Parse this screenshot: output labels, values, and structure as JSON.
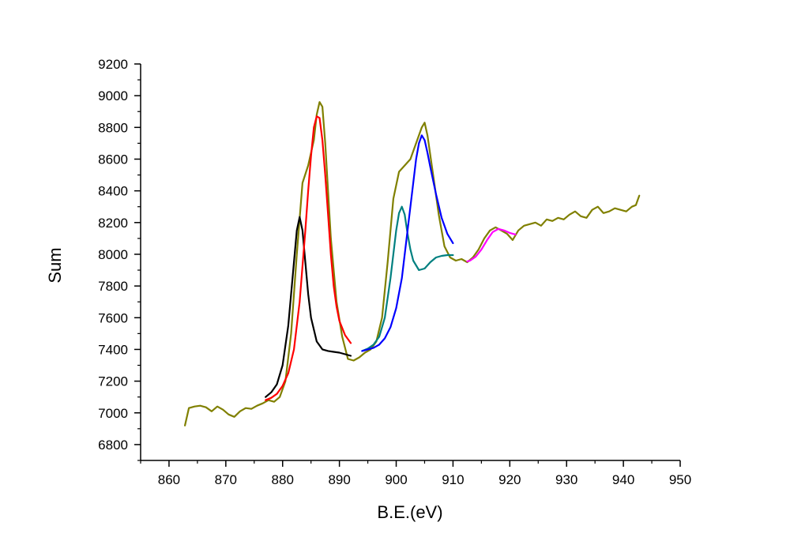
{
  "chart_data": {
    "type": "line",
    "title": "",
    "xlabel": "B.E.(eV)",
    "ylabel": "Sum",
    "xlim": [
      855,
      950
    ],
    "ylim": [
      6700,
      9200
    ],
    "x_ticks": [
      860,
      870,
      880,
      890,
      900,
      910,
      920,
      930,
      940,
      950
    ],
    "y_ticks": [
      6800,
      7000,
      7200,
      7400,
      7600,
      7800,
      8000,
      8200,
      8400,
      8600,
      8800,
      9000,
      9200
    ],
    "grid": false,
    "legend": "none",
    "series": [
      {
        "color": "#808000",
        "x": [
          862.8,
          863.5,
          864.5,
          865.5,
          866.5,
          867.5,
          868.5,
          869.5,
          870.5,
          871.5,
          872.5,
          873.5,
          874.5,
          875.5,
          876.5,
          877.5,
          878.5,
          879.5,
          880.5,
          881.5,
          882.5,
          883.5,
          884.5,
          885.5,
          886.0,
          886.5,
          887.0,
          887.5,
          888.5,
          889.5,
          890.5,
          891.5,
          892.5,
          893.5,
          894.5,
          895.5,
          896.5,
          897.5,
          898.5,
          899.5,
          900.5,
          901.5,
          902.5,
          903.5,
          904.5,
          905.0,
          905.5,
          906.5,
          907.5,
          908.5,
          909.5,
          910.5,
          911.5,
          912.5,
          913.5,
          914.5,
          915.5,
          916.5,
          917.5,
          918.5,
          919.5,
          920.5,
          921.5,
          922.5,
          923.5,
          924.5,
          925.5,
          926.5,
          927.5,
          928.5,
          929.5,
          930.5,
          931.5,
          932.5,
          933.5,
          934.5,
          935.5,
          936.5,
          937.5,
          938.5,
          939.5,
          940.5,
          941.5,
          942.2,
          942.8
        ],
        "y": [
          6920,
          7030,
          7040,
          7045,
          7035,
          7010,
          7040,
          7020,
          6990,
          6975,
          7010,
          7030,
          7025,
          7045,
          7060,
          7080,
          7070,
          7100,
          7200,
          7500,
          8000,
          8450,
          8560,
          8720,
          8880,
          8960,
          8930,
          8700,
          8100,
          7700,
          7480,
          7340,
          7330,
          7350,
          7380,
          7400,
          7450,
          7600,
          7950,
          8350,
          8520,
          8560,
          8600,
          8700,
          8800,
          8830,
          8750,
          8500,
          8250,
          8050,
          7980,
          7960,
          7970,
          7950,
          7980,
          8030,
          8100,
          8150,
          8170,
          8150,
          8130,
          8090,
          8150,
          8180,
          8190,
          8200,
          8180,
          8220,
          8210,
          8230,
          8220,
          8250,
          8270,
          8240,
          8230,
          8280,
          8300,
          8260,
          8270,
          8290,
          8280,
          8270,
          8300,
          8310,
          8370
        ]
      },
      {
        "color": "#000000",
        "x": [
          877.0,
          878.0,
          879.0,
          880.0,
          881.0,
          882.0,
          882.5,
          883.0,
          883.5,
          884.0,
          884.5,
          885.0,
          886.0,
          887.0,
          888.0,
          889.0,
          890.0,
          891.0,
          892.0
        ],
        "y": [
          7100,
          7130,
          7180,
          7300,
          7550,
          7950,
          8150,
          8235,
          8150,
          7950,
          7750,
          7600,
          7450,
          7400,
          7390,
          7385,
          7380,
          7370,
          7360
        ]
      },
      {
        "color": "#ff0000",
        "x": [
          877.0,
          878.0,
          879.0,
          880.0,
          881.0,
          882.0,
          883.0,
          884.0,
          884.5,
          885.0,
          885.5,
          886.0,
          886.5,
          887.0,
          887.5,
          888.0,
          888.5,
          889.0,
          889.5,
          890.0,
          891.0,
          892.0
        ],
        "y": [
          7080,
          7095,
          7120,
          7170,
          7250,
          7400,
          7700,
          8150,
          8400,
          8620,
          8800,
          8870,
          8860,
          8720,
          8500,
          8250,
          8000,
          7800,
          7670,
          7580,
          7490,
          7440
        ]
      },
      {
        "color": "#008080",
        "x": [
          894.0,
          895.0,
          896.0,
          897.0,
          898.0,
          899.0,
          900.0,
          900.5,
          901.0,
          901.5,
          902.0,
          902.5,
          903.0,
          904.0,
          905.0,
          906.0,
          907.0,
          908.0,
          909.0,
          910.0
        ],
        "y": [
          7390,
          7405,
          7430,
          7480,
          7600,
          7850,
          8150,
          8260,
          8300,
          8250,
          8130,
          8030,
          7960,
          7900,
          7910,
          7950,
          7980,
          7990,
          7995,
          7995
        ]
      },
      {
        "color": "#0000ff",
        "x": [
          894.0,
          895.0,
          896.0,
          897.0,
          898.0,
          899.0,
          900.0,
          901.0,
          902.0,
          903.0,
          903.5,
          904.0,
          904.5,
          905.0,
          905.5,
          906.0,
          907.0,
          908.0,
          909.0,
          910.0
        ],
        "y": [
          7390,
          7400,
          7410,
          7430,
          7470,
          7540,
          7660,
          7850,
          8150,
          8450,
          8600,
          8700,
          8750,
          8720,
          8640,
          8550,
          8380,
          8230,
          8130,
          8070
        ]
      },
      {
        "color": "#ff00ff",
        "x": [
          912.5,
          913.0,
          914.0,
          915.0,
          916.0,
          917.0,
          918.0,
          919.0,
          920.0,
          921.0
        ],
        "y": [
          7955,
          7960,
          7985,
          8030,
          8090,
          8140,
          8160,
          8150,
          8135,
          8125
        ]
      }
    ]
  }
}
